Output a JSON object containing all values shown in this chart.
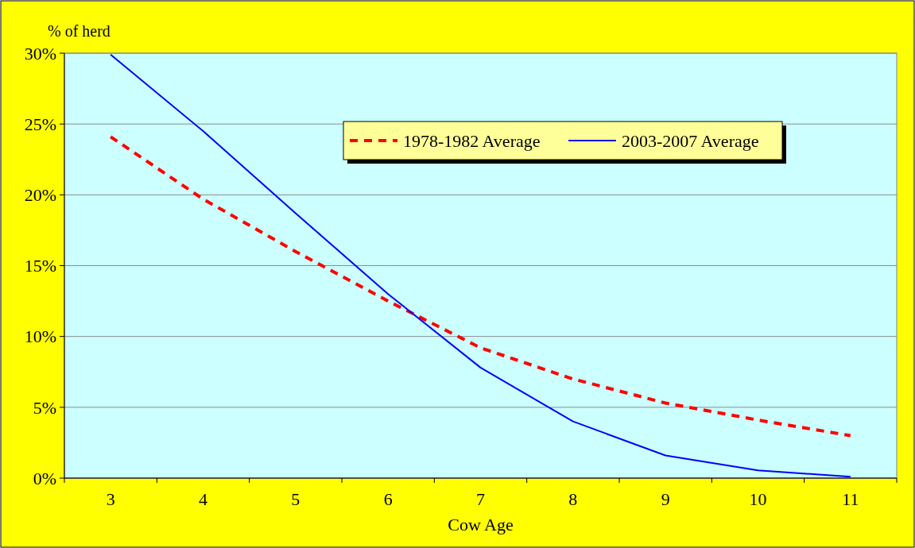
{
  "chart_data": {
    "type": "line",
    "xlabel": "Cow Age",
    "ylabel": "% of herd",
    "categories": [
      "3",
      "4",
      "5",
      "6",
      "7",
      "8",
      "9",
      "10",
      "11"
    ],
    "series": [
      {
        "name": "1978-1982 Average",
        "color": "#ff0000",
        "line_style": "dashed",
        "values": [
          24.1,
          19.7,
          16.0,
          12.5,
          9.2,
          7.0,
          5.3,
          4.1,
          3.0
        ]
      },
      {
        "name": "2003-2007 Average",
        "color": "#0000ff",
        "line_style": "solid",
        "values": [
          29.9,
          24.5,
          18.7,
          13.0,
          7.8,
          4.0,
          1.6,
          0.55,
          0.1
        ]
      }
    ],
    "ylim": [
      0,
      30
    ],
    "yticks": [
      {
        "value": 0,
        "label": "0%"
      },
      {
        "value": 5,
        "label": "5%"
      },
      {
        "value": 10,
        "label": "10%"
      },
      {
        "value": 15,
        "label": "15%"
      },
      {
        "value": 20,
        "label": "20%"
      },
      {
        "value": 25,
        "label": "25%"
      },
      {
        "value": 30,
        "label": "30%"
      }
    ],
    "grid": "y",
    "legend": "top right",
    "marker": "none"
  }
}
